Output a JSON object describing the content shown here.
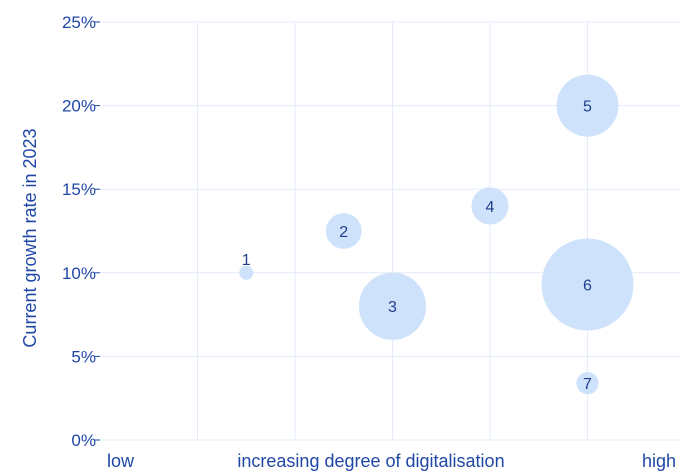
{
  "chart_data": {
    "type": "scatter",
    "ylabel": "Current growth rate in 2023",
    "x_axis_labels": {
      "low": "low",
      "middle": "increasing degree of digitalisation",
      "high": "high"
    },
    "ylim": [
      0,
      25
    ],
    "yticks": [
      "0%",
      "5%",
      "10%",
      "15%",
      "20%",
      "25%"
    ],
    "xlim": [
      0,
      6
    ],
    "grid": true,
    "bubble_color": "#cfe2fb",
    "text_color": "#1f47a6",
    "points": [
      {
        "label": "1",
        "x": 1.5,
        "y": 10,
        "size": 0.2
      },
      {
        "label": "2",
        "x": 2.5,
        "y": 12.5,
        "size": 1.3
      },
      {
        "label": "3",
        "x": 3.0,
        "y": 8,
        "size": 4.6
      },
      {
        "label": "4",
        "x": 4.0,
        "y": 14,
        "size": 1.4
      },
      {
        "label": "5",
        "x": 5.0,
        "y": 20,
        "size": 3.9
      },
      {
        "label": "6",
        "x": 5.0,
        "y": 9.3,
        "size": 8.6
      },
      {
        "label": "7",
        "x": 5.0,
        "y": 3.4,
        "size": 0.5
      }
    ]
  }
}
